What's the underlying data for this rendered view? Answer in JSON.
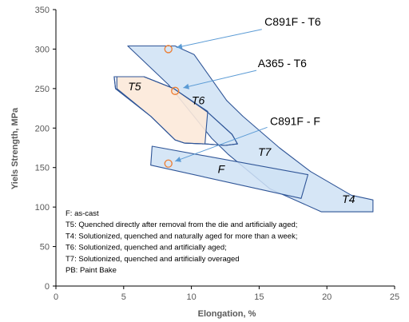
{
  "chart_data": {
    "type": "area",
    "title": "",
    "xlabel": "Elongation, %",
    "ylabel": "Yiels Strength, MPa",
    "xlim": [
      0,
      25
    ],
    "ylim": [
      0,
      350
    ],
    "x_ticks": [
      0,
      5,
      10,
      15,
      20,
      25
    ],
    "y_ticks": [
      0,
      50,
      100,
      150,
      200,
      250,
      300,
      350
    ],
    "x_tick_labels": [
      "0",
      "5",
      "10",
      "15",
      "20",
      "25"
    ],
    "y_tick_labels": [
      "0",
      "50",
      "100",
      "150",
      "200",
      "250",
      "300",
      "350"
    ],
    "grid": false,
    "colors": {
      "region_fill": "#cfe2f5",
      "region_stroke": "#2f5597",
      "t5_fill": "#fce9d9",
      "marker": "#ed7d31",
      "callout_line": "#5b9bd5",
      "axis": "#000000",
      "tick_text": "#595959"
    },
    "regions": [
      {
        "name": "T4",
        "label": "T4",
        "label_at": [
          21.6,
          105
        ],
        "polygon": [
          [
            5.3,
            304
          ],
          [
            8.8,
            304
          ],
          [
            10.2,
            293
          ],
          [
            12.6,
            235
          ],
          [
            13.8,
            215
          ],
          [
            16.5,
            175
          ],
          [
            18.8,
            145
          ],
          [
            21.8,
            115
          ],
          [
            23.4,
            109
          ],
          [
            23.4,
            94
          ],
          [
            19.6,
            94
          ],
          [
            15.8,
            123
          ],
          [
            12.7,
            167
          ],
          [
            11.5,
            187
          ],
          [
            8.3,
            255
          ]
        ]
      },
      {
        "name": "T6",
        "label": "T6",
        "label_at": [
          10.5,
          230
        ],
        "polygon": [
          [
            4.3,
            265
          ],
          [
            6.5,
            265
          ],
          [
            8.7,
            250
          ],
          [
            11.2,
            220
          ],
          [
            13.0,
            192
          ],
          [
            13.4,
            180
          ],
          [
            12.5,
            178
          ],
          [
            11.0,
            180
          ],
          [
            9.5,
            181
          ],
          [
            8.8,
            185
          ],
          [
            7.0,
            215
          ],
          [
            4.4,
            250
          ]
        ]
      },
      {
        "name": "T5",
        "label": "T5",
        "label_at": [
          5.8,
          248
        ],
        "polygon": [
          [
            4.5,
            265
          ],
          [
            6.5,
            265
          ],
          [
            8.7,
            250
          ],
          [
            11.2,
            221
          ],
          [
            11.0,
            180
          ],
          [
            9.5,
            181
          ],
          [
            8.8,
            185
          ],
          [
            7.0,
            215
          ],
          [
            4.5,
            250
          ]
        ]
      },
      {
        "name": "T7",
        "label": "T7",
        "label_at": [
          15.4,
          165
        ],
        "polygon": []
      },
      {
        "name": "F",
        "label": "F",
        "label_at": [
          12.2,
          143
        ],
        "polygon": [
          [
            7.1,
            177
          ],
          [
            18.6,
            141
          ],
          [
            18.1,
            111
          ],
          [
            7.0,
            153
          ]
        ]
      }
    ],
    "points": [
      {
        "name": "C891F - T6",
        "x": 8.3,
        "y": 300
      },
      {
        "name": "A365 - T6",
        "x": 8.8,
        "y": 247
      },
      {
        "name": "C891F - F",
        "x": 8.3,
        "y": 155
      }
    ],
    "callouts": [
      {
        "label": "C891F - T6",
        "text_at": [
          15.4,
          330
        ],
        "line_from": [
          15.2,
          325
        ],
        "line_to": [
          8.9,
          302
        ]
      },
      {
        "label": "A365 - T6",
        "text_at": [
          14.9,
          277
        ],
        "line_from": [
          14.8,
          273
        ],
        "line_to": [
          9.4,
          251
        ]
      },
      {
        "label": "C891F - F",
        "text_at": [
          15.8,
          204
        ],
        "line_from": [
          15.6,
          201
        ],
        "line_to": [
          8.8,
          158
        ]
      }
    ],
    "legend_position": "bottom-left",
    "legend_lines": [
      "F: as-cast",
      "T5: Quenched directly after removal from the die and artificially aged;",
      "T4: Solutionized, quenched and naturally aged for more than a week;",
      "T6: Solutionized, quenched and artificially aged;",
      "T7: Solutionized, quenched and artificially overaged",
      "PB: Paint Bake"
    ]
  }
}
